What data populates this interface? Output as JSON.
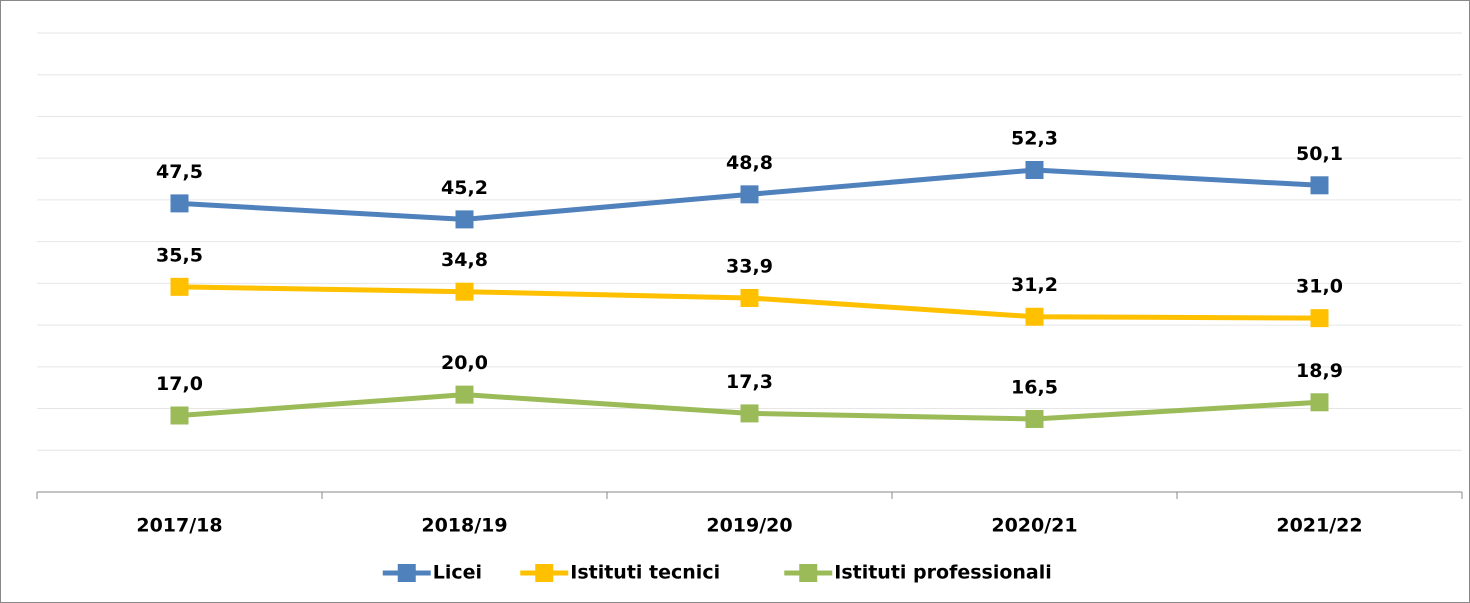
{
  "chart_data": {
    "type": "line",
    "categories": [
      "2017/18",
      "2018/19",
      "2019/20",
      "2020/21",
      "2021/22"
    ],
    "series": [
      {
        "name": "Licei",
        "color": "#4f81bd",
        "values": [
          47.5,
          45.2,
          48.8,
          52.3,
          50.1
        ],
        "value_labels": [
          "47,5",
          "45,2",
          "48,8",
          "52,3",
          "50,1"
        ]
      },
      {
        "name": "Istituti tecnici",
        "color": "#ffc000",
        "values": [
          35.5,
          34.8,
          33.9,
          31.2,
          31.0
        ],
        "value_labels": [
          "35,5",
          "34,8",
          "33,9",
          "31,2",
          "31,0"
        ]
      },
      {
        "name": "Istituti professionali",
        "color": "#9bbb59",
        "values": [
          17.0,
          20.0,
          17.3,
          16.5,
          18.9
        ],
        "value_labels": [
          "17,0",
          "20,0",
          "17,3",
          "16,5",
          "18,9"
        ]
      }
    ],
    "ylim": [
      6,
      72
    ],
    "yticks": [
      6,
      12,
      18,
      24,
      30,
      36,
      42,
      48,
      54,
      60,
      66,
      72
    ],
    "grid": true,
    "legend": "bottom"
  }
}
